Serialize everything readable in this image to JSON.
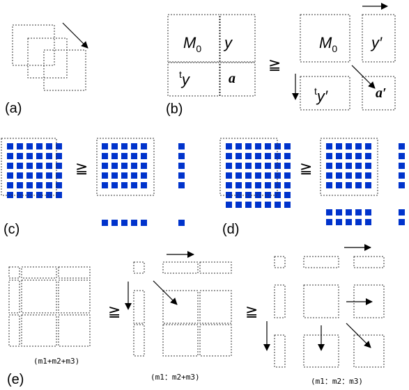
{
  "panel_labels": {
    "a": "(a)",
    "b": "(b)",
    "c": "(c)",
    "d": "(d)",
    "e": "(e)"
  },
  "relation_symbol": "≧",
  "panel_b": {
    "left_m": "M",
    "left_m_sub": "0",
    "left_y": "y",
    "left_ty_sup": "t",
    "left_ty": "y",
    "left_a": "a",
    "right_m": "M",
    "right_m_sub": "0",
    "right_y": "y′",
    "right_ty_sup": "t",
    "right_ty": "y′",
    "right_a": "a′"
  },
  "panel_e": {
    "caption_1": "(m1+m2+m3)",
    "caption_2": "(m1：m2+m3)",
    "caption_3": "(m1：m2：m3)"
  },
  "colors": {
    "square": "#0033cc",
    "stroke": "#333333"
  }
}
